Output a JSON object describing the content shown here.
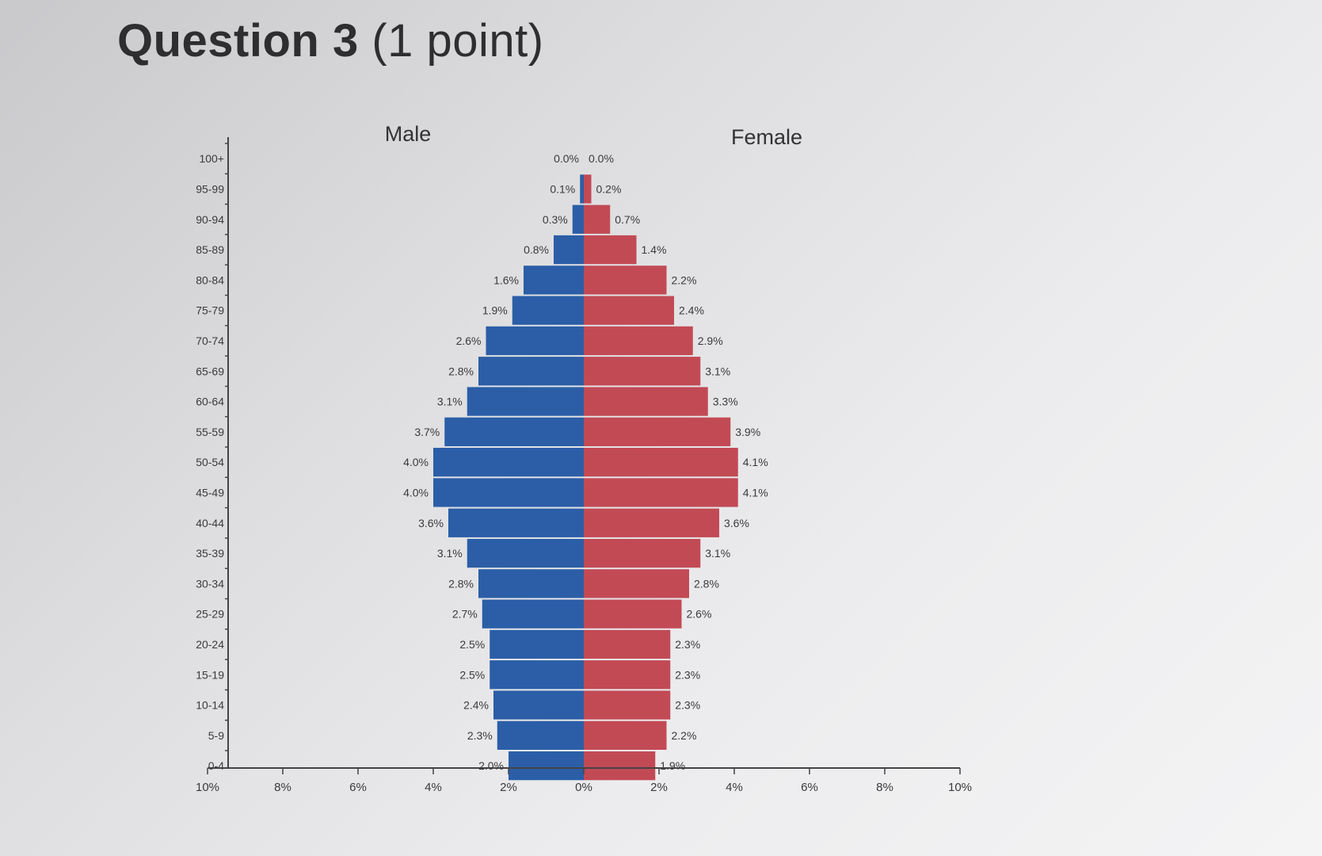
{
  "question": {
    "title": "Question 3",
    "points": "(1 point)"
  },
  "chart_data": {
    "type": "bar",
    "orientation": "horizontal-population-pyramid",
    "left_label": "Male",
    "right_label": "Female",
    "categories": [
      "100+",
      "95-99",
      "90-94",
      "85-89",
      "80-84",
      "75-79",
      "70-74",
      "65-69",
      "60-64",
      "55-59",
      "50-54",
      "45-49",
      "40-44",
      "35-39",
      "30-34",
      "25-29",
      "20-24",
      "15-19",
      "10-14",
      "5-9",
      "0-4"
    ],
    "series": [
      {
        "name": "Male",
        "color": "#2b5ea7",
        "values": [
          0.0,
          0.1,
          0.3,
          0.8,
          1.6,
          1.9,
          2.6,
          2.8,
          3.1,
          3.7,
          4.0,
          4.0,
          3.6,
          3.1,
          2.8,
          2.7,
          2.5,
          2.5,
          2.4,
          2.3,
          2.0
        ],
        "labels": [
          "0.0%",
          "0.1%",
          "0.3%",
          "0.8%",
          "1.6%",
          "1.9%",
          "2.6%",
          "2.8%",
          "3.1%",
          "3.7%",
          "4.0%",
          "4.0%",
          "3.6%",
          "3.1%",
          "2.8%",
          "2.7%",
          "2.5%",
          "2.5%",
          "2.4%",
          "2.3%",
          "2.0%"
        ]
      },
      {
        "name": "Female",
        "color": "#c24a55",
        "values": [
          0.0,
          0.2,
          0.7,
          1.4,
          2.2,
          2.4,
          2.9,
          3.1,
          3.3,
          3.9,
          4.1,
          4.1,
          3.6,
          3.1,
          2.8,
          2.6,
          2.3,
          2.3,
          2.3,
          2.2,
          1.9
        ],
        "labels": [
          "0.0%",
          "0.2%",
          "0.7%",
          "1.4%",
          "2.2%",
          "2.4%",
          "2.9%",
          "3.1%",
          "3.3%",
          "3.9%",
          "4.1%",
          "4.1%",
          "3.6%",
          "3.1%",
          "2.8%",
          "2.6%",
          "2.3%",
          "2.3%",
          "2.3%",
          "2.2%",
          "1.9%"
        ]
      }
    ],
    "x_ticks": [
      "10%",
      "8%",
      "6%",
      "4%",
      "2%",
      "0%",
      "2%",
      "4%",
      "6%",
      "8%",
      "10%"
    ],
    "xlim": [
      -10,
      10
    ],
    "grid": false
  }
}
